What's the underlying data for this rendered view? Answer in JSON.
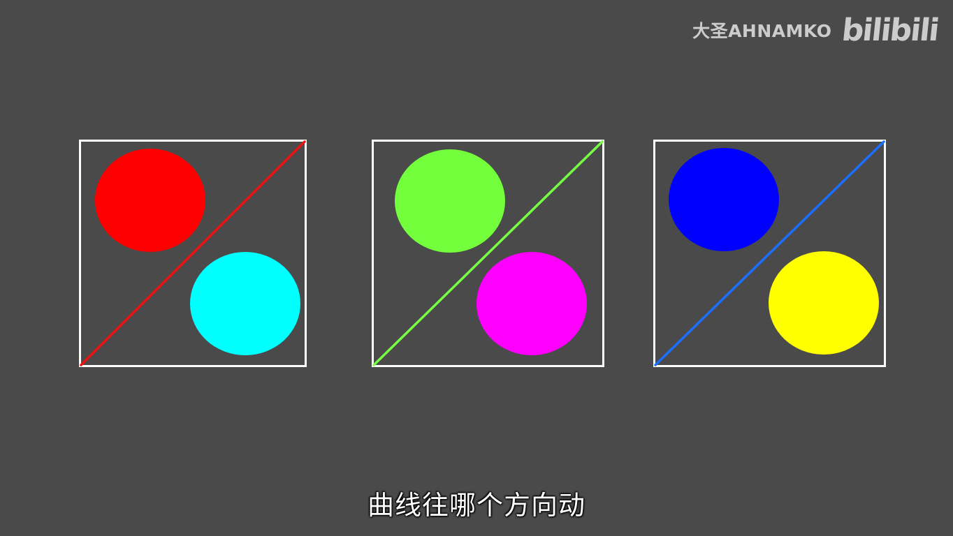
{
  "watermark": {
    "author": "大圣AHNAMKO",
    "logo": "bilibili"
  },
  "subtitle": "曲线往哪个方向动",
  "colors": {
    "background": "#4a4a4a",
    "frame": "#ffffff"
  },
  "panels": [
    {
      "diagonal_color": "#ee1111",
      "top_left_circle_color": "#ff0000",
      "bottom_right_circle_color": "#00ffff"
    },
    {
      "diagonal_color": "#77ff44",
      "top_left_circle_color": "#73ff3b",
      "bottom_right_circle_color": "#ff00ff"
    },
    {
      "diagonal_color": "#1a6fff",
      "top_left_circle_color": "#0000ff",
      "bottom_right_circle_color": "#ffff00"
    }
  ]
}
